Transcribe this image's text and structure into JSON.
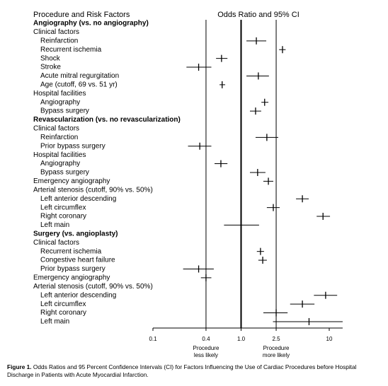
{
  "chart_data": {
    "type": "forest",
    "left_header": "Procedure and Risk Factors",
    "right_header": "Odds Ratio and 95% CI",
    "log_x": true,
    "xlim": [
      0.1,
      14.2
    ],
    "xticks": [
      0.1,
      0.4,
      {
        "value": 1,
        "label": "1.0"
      },
      2.5,
      10
    ],
    "reference_lines": [
      0.4,
      1,
      2.5
    ],
    "color": "#000000",
    "axis_labels": [
      {
        "at": 0.4,
        "lines": [
          "Procedure",
          "less likely"
        ]
      },
      {
        "at": 2.5,
        "lines": [
          "Procedure",
          "more likely"
        ]
      }
    ],
    "rows": [
      {
        "label": "Angiography (vs. no angiography)",
        "level": 0,
        "bold": true
      },
      {
        "label": "Clinical factors",
        "level": 0
      },
      {
        "label": "Reinfarction",
        "level": 1,
        "or": 1.49,
        "lo": 1.15,
        "hi": 1.93
      },
      {
        "label": "Recurrent ischemia",
        "level": 1,
        "or": 2.95,
        "lo": 2.7,
        "hi": 3.2
      },
      {
        "label": "Shock",
        "level": 1,
        "or": 0.6,
        "lo": 0.52,
        "hi": 0.7
      },
      {
        "label": "Stroke",
        "level": 1,
        "or": 0.33,
        "lo": 0.24,
        "hi": 0.46
      },
      {
        "label": "Acute mitral regurgitation",
        "level": 1,
        "or": 1.57,
        "lo": 1.15,
        "hi": 2.07
      },
      {
        "label": "Age (cutoff, 69 vs. 51 yr)",
        "level": 1,
        "or": 0.61,
        "lo": 0.57,
        "hi": 0.66
      },
      {
        "label": "Hospital facilities",
        "level": 0
      },
      {
        "label": "Angiography",
        "level": 1,
        "or": 1.85,
        "lo": 1.7,
        "hi": 2.04
      },
      {
        "label": "Bypass surgery",
        "level": 1,
        "or": 1.46,
        "lo": 1.26,
        "hi": 1.69
      },
      {
        "label": "Revascularization (vs. no revascularization)",
        "level": 0,
        "bold": true
      },
      {
        "label": "Clinical factors",
        "level": 0
      },
      {
        "label": "Reinfarction",
        "level": 1,
        "or": 1.96,
        "lo": 1.46,
        "hi": 2.64
      },
      {
        "label": "Prior bypass surgery",
        "level": 1,
        "or": 0.34,
        "lo": 0.25,
        "hi": 0.46
      },
      {
        "label": "Hospital facilities",
        "level": 0
      },
      {
        "label": "Angiography",
        "level": 1,
        "or": 0.59,
        "lo": 0.5,
        "hi": 0.7
      },
      {
        "label": "Bypass surgery",
        "level": 1,
        "or": 1.54,
        "lo": 1.26,
        "hi": 1.89
      },
      {
        "label": "Emergency angiography",
        "level": 0,
        "or": 2.04,
        "lo": 1.79,
        "hi": 2.32
      },
      {
        "label": "Arterial stenosis (cutoff, 90% vs. 50%)",
        "level": 0
      },
      {
        "label": "Left anterior descending",
        "level": 1,
        "or": 4.96,
        "lo": 4.2,
        "hi": 5.85
      },
      {
        "label": "Left circumflex",
        "level": 1,
        "or": 2.32,
        "lo": 1.96,
        "hi": 2.74
      },
      {
        "label": "Right coronary",
        "level": 1,
        "or": 8.5,
        "lo": 7.2,
        "hi": 10.2
      },
      {
        "label": "Left main",
        "level": 1,
        "or": 1.0,
        "lo": 0.64,
        "hi": 1.6
      },
      {
        "label": "Surgery (vs. angioplasty)",
        "level": 0,
        "bold": true
      },
      {
        "label": "Clinical factors",
        "level": 0
      },
      {
        "label": "Recurrent ischemia",
        "level": 1,
        "or": 1.66,
        "lo": 1.51,
        "hi": 1.82
      },
      {
        "label": "Congestive heart failure",
        "level": 1,
        "or": 1.76,
        "lo": 1.57,
        "hi": 1.96
      },
      {
        "label": "Prior bypass surgery",
        "level": 1,
        "or": 0.33,
        "lo": 0.22,
        "hi": 0.49
      },
      {
        "label": "Emergency angiography",
        "level": 0,
        "or": 0.4,
        "lo": 0.35,
        "hi": 0.46
      },
      {
        "label": "Arterial stenosis (cutoff, 90% vs. 50%)",
        "level": 0
      },
      {
        "label": "Left anterior descending",
        "level": 1,
        "or": 9.1,
        "lo": 6.7,
        "hi": 12.3
      },
      {
        "label": "Left circumflex",
        "level": 1,
        "or": 4.96,
        "lo": 3.6,
        "hi": 6.8
      },
      {
        "label": "Right coronary",
        "level": 1,
        "or": 2.5,
        "lo": 1.79,
        "hi": 3.37
      },
      {
        "label": "Left main",
        "level": 1,
        "or": 5.9,
        "lo": 2.3,
        "hi": 14.2
      }
    ],
    "caption_label": "Figure 1.",
    "caption": "Odds Ratios and 95 Percent Confidence Intervals (CI) for Factors Influencing the Use of Cardiac Procedures before Hospital Discharge in Patients with Acute Myocardial Infarction."
  }
}
